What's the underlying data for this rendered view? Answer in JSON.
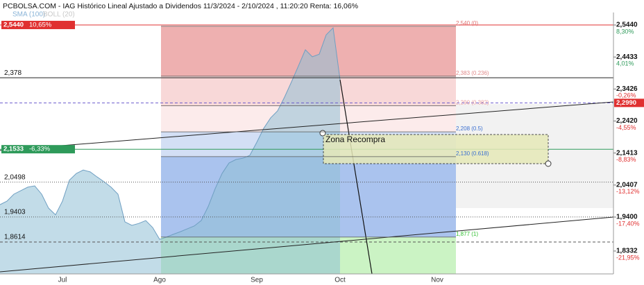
{
  "header": {
    "title": "PCBOLSA.COM - IAG Histórico Lineal Ajustado a Dividendos 11/3/2024 - 2/10/2024 , 11:20:20 Renta: 16,06%",
    "indicator_sma": "SMA (100)",
    "indicator_boll": "BOLL (20)"
  },
  "chart_data": {
    "type": "area",
    "color": "#8fbfd6",
    "categories": [
      null,
      null,
      null,
      null,
      null,
      null,
      null,
      null,
      null,
      "Jul",
      null,
      null,
      null,
      null,
      null,
      null,
      null,
      null,
      null,
      null,
      null,
      null,
      null,
      "Ago",
      null,
      null,
      null,
      null,
      null,
      null,
      null,
      null,
      null,
      null,
      null,
      null,
      null,
      "Sep",
      null,
      null,
      null,
      null,
      null,
      null,
      null,
      null,
      null,
      null,
      null,
      "Oct",
      null,
      null,
      null,
      null,
      null,
      null,
      null,
      null,
      null,
      null,
      null,
      null,
      null,
      "Nov",
      null,
      null,
      null,
      null,
      null,
      null,
      null,
      null,
      null,
      null,
      null,
      null,
      null,
      null,
      null,
      null,
      null,
      null,
      null,
      null,
      null,
      null,
      null,
      null,
      null
    ],
    "values": [
      1.979,
      1.99,
      2.012,
      2.023,
      2.034,
      2.038,
      2.012,
      1.968,
      1.947,
      1.99,
      2.056,
      2.077,
      2.088,
      2.082,
      2.066,
      2.051,
      2.034,
      2.012,
      1.925,
      1.914,
      1.92,
      1.929,
      1.907,
      1.87,
      1.877,
      1.886,
      1.894,
      1.903,
      1.912,
      1.929,
      1.973,
      2.029,
      2.077,
      2.11,
      2.121,
      2.125,
      2.134,
      2.175,
      2.219,
      2.252,
      2.274,
      2.317,
      2.365,
      2.415,
      2.466,
      2.444,
      2.452,
      2.513,
      2.535,
      2.372,
      null,
      null,
      null,
      null,
      null,
      null,
      null,
      null,
      null,
      null,
      null,
      null,
      null,
      null,
      null,
      null,
      null,
      null,
      null,
      null,
      null,
      null,
      null,
      null,
      null,
      null,
      null,
      null,
      null,
      null,
      null,
      null,
      null,
      null,
      null,
      null,
      null,
      null,
      null
    ],
    "ylim": [
      1.7612,
      2.5833
    ],
    "yticks": [
      {
        "value": 2.544,
        "label": "2,5440"
      },
      {
        "value": 2.4433,
        "label": "2,4433"
      },
      {
        "value": 2.3426,
        "label": "2,3426"
      },
      {
        "value": 2.242,
        "label": "2,2420"
      },
      {
        "value": 2.1413,
        "label": "2,1413"
      },
      {
        "value": 2.0407,
        "label": "2,0407"
      },
      {
        "value": 1.94,
        "label": "1,9400"
      },
      {
        "value": 1.8332,
        "label": "1,8332"
      }
    ],
    "y2lim": [
      -25.02,
      9.97
    ],
    "y2ticks": [
      {
        "value": 8.3,
        "label": "8,30%"
      },
      {
        "value": 4.01,
        "label": "4,01%"
      },
      {
        "value": -0.26,
        "label": "-0,26%"
      },
      {
        "value": -4.55,
        "label": "-4,55%"
      },
      {
        "value": -8.83,
        "label": "-8,83%"
      },
      {
        "value": -13.12,
        "label": "-13,12%"
      },
      {
        "value": -17.4,
        "label": "-17,40%"
      },
      {
        "value": -21.95,
        "label": "-21,95%"
      }
    ],
    "levels": [
      {
        "value": 2.544,
        "label": "2,5440",
        "change": "10,65%",
        "color": "#e03030",
        "style": "solid",
        "box": true
      },
      {
        "value": 2.378,
        "label": "2,378",
        "color": "#222222",
        "style": "solid"
      },
      {
        "value": 2.299,
        "label": "2,2990",
        "color": "#e03030",
        "line_color": "#6a5acd",
        "style": "dashed",
        "box": true,
        "side": "right"
      },
      {
        "value": 2.1533,
        "label": "2,1533",
        "change": "-6,33%",
        "color": "#2e9a5a",
        "style": "solid",
        "box": true
      },
      {
        "value": 2.0498,
        "label": "2,0498",
        "color": "#555555",
        "style": "dotted"
      },
      {
        "value": 1.9403,
        "label": "1,9403",
        "color": "#555555",
        "style": "dotted"
      },
      {
        "value": 1.8614,
        "label": "1,8614",
        "color": "#555555",
        "style": "dashed"
      }
    ],
    "fibonacci": [
      {
        "value": 2.54,
        "label": "2,540 (0)",
        "color": "#e07070",
        "fill": "#eeb0b0"
      },
      {
        "value": 2.383,
        "label": "2,383 (0.236)",
        "color": "#e08a8a",
        "fill": "#f8d8d8"
      },
      {
        "value": 2.29,
        "label": "2,290 (0.382)",
        "color": "#e89a9a",
        "fill": "#fcebeb"
      },
      {
        "value": 2.208,
        "label": "2,208 (0.5)",
        "color": "#3a6fd0",
        "fill": "#d3dff5"
      },
      {
        "value": 2.13,
        "label": "2,130 (0.618)",
        "color": "#3a6fd0",
        "fill": "#aac3ee"
      },
      {
        "value": 1.877,
        "label": "1,877 (1)",
        "color": "#2fbf2f",
        "fill": "#cbf3c4"
      }
    ],
    "annotation": "Zona Recompra"
  }
}
